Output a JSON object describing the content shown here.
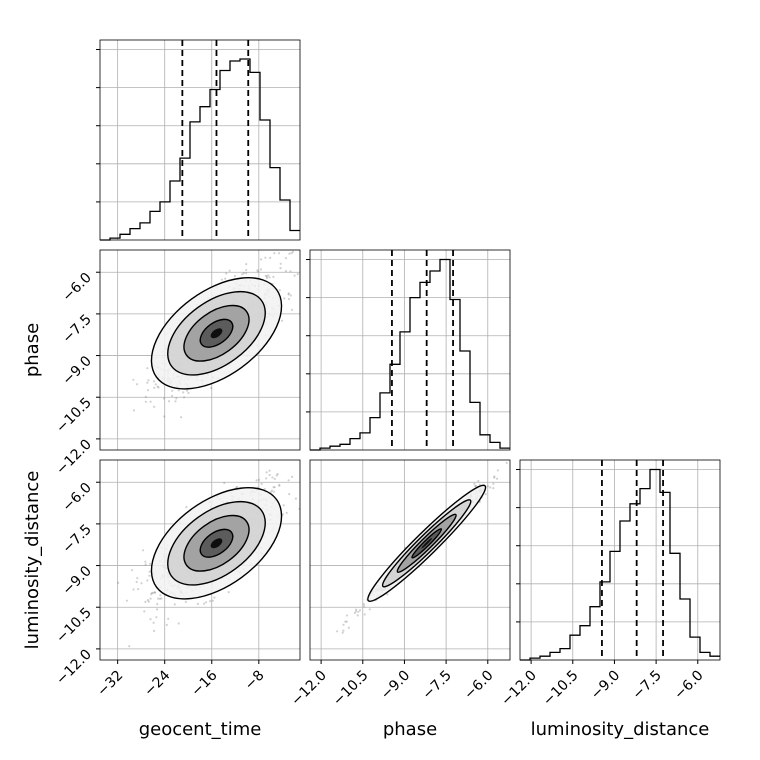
{
  "chart_data": {
    "type": "corner",
    "parameters": [
      "geocent_time",
      "phase",
      "luminosity_distance"
    ],
    "axis_labels": {
      "x": [
        "geocent_time",
        "phase",
        "luminosity_distance"
      ],
      "y": [
        "",
        "phase",
        "luminosity_distance"
      ]
    },
    "ranges": [
      [
        -35,
        -1
      ],
      [
        -12.4,
        -5.2
      ],
      [
        -12.4,
        -5.2
      ]
    ],
    "ticks": [
      [
        -32,
        -24,
        -16,
        -8
      ],
      [
        -12.0,
        -10.5,
        -9.0,
        -7.5,
        -6.0
      ],
      [
        -12.0,
        -10.5,
        -9.0,
        -7.5,
        -6.0
      ]
    ],
    "tick_labels": [
      [
        "−32",
        "−24",
        "−16",
        "−8"
      ],
      [
        "−12.0",
        "−10.5",
        "−9.0",
        "−7.5",
        "−6.0"
      ],
      [
        "−12.0",
        "−10.5",
        "−9.0",
        "−7.5",
        "−6.0"
      ]
    ],
    "quantiles": [
      [
        -21.0,
        -15.2,
        -9.8
      ],
      [
        -9.45,
        -8.2,
        -7.25
      ],
      [
        -9.45,
        -8.2,
        -7.25
      ]
    ],
    "hist_max": [
      1.0,
      1.0,
      1.0
    ],
    "histograms": [
      {
        "edges_start": -35,
        "bin_width": 1.7,
        "counts": [
          0,
          0.01,
          0.03,
          0.06,
          0.09,
          0.15,
          0.2,
          0.31,
          0.43,
          0.62,
          0.7,
          0.79,
          0.89,
          0.94,
          0.95,
          0.88,
          0.63,
          0.38,
          0.21,
          0.05
        ]
      },
      {
        "edges_start": -12.4,
        "bin_width": 0.36,
        "counts": [
          0,
          0.01,
          0.02,
          0.03,
          0.06,
          0.09,
          0.17,
          0.3,
          0.45,
          0.62,
          0.8,
          0.88,
          0.94,
          1.0,
          0.79,
          0.52,
          0.25,
          0.08,
          0.04,
          0.01
        ]
      },
      {
        "edges_start": -12.4,
        "bin_width": 0.36,
        "counts": [
          0,
          0.01,
          0.02,
          0.04,
          0.06,
          0.13,
          0.18,
          0.28,
          0.41,
          0.57,
          0.73,
          0.82,
          0.9,
          1.0,
          0.88,
          0.56,
          0.32,
          0.12,
          0.04,
          0.02
        ]
      }
    ],
    "pairs": [
      {
        "x": 0,
        "y": 1,
        "mean": [
          -15.2,
          -8.2
        ],
        "sd": [
          5.1,
          1.05
        ],
        "corr": 0.75
      },
      {
        "x": 0,
        "y": 2,
        "mean": [
          -15.2,
          -8.2
        ],
        "sd": [
          5.1,
          1.05
        ],
        "corr": 0.75
      },
      {
        "x": 1,
        "y": 2,
        "mean": [
          -8.2,
          -8.2
        ],
        "sd": [
          1.05,
          1.05
        ],
        "corr": 0.985
      }
    ],
    "grid": true,
    "colors": {
      "points": "#7a7a7a",
      "lines": "#000000",
      "grid": "#b0b0b0"
    }
  }
}
